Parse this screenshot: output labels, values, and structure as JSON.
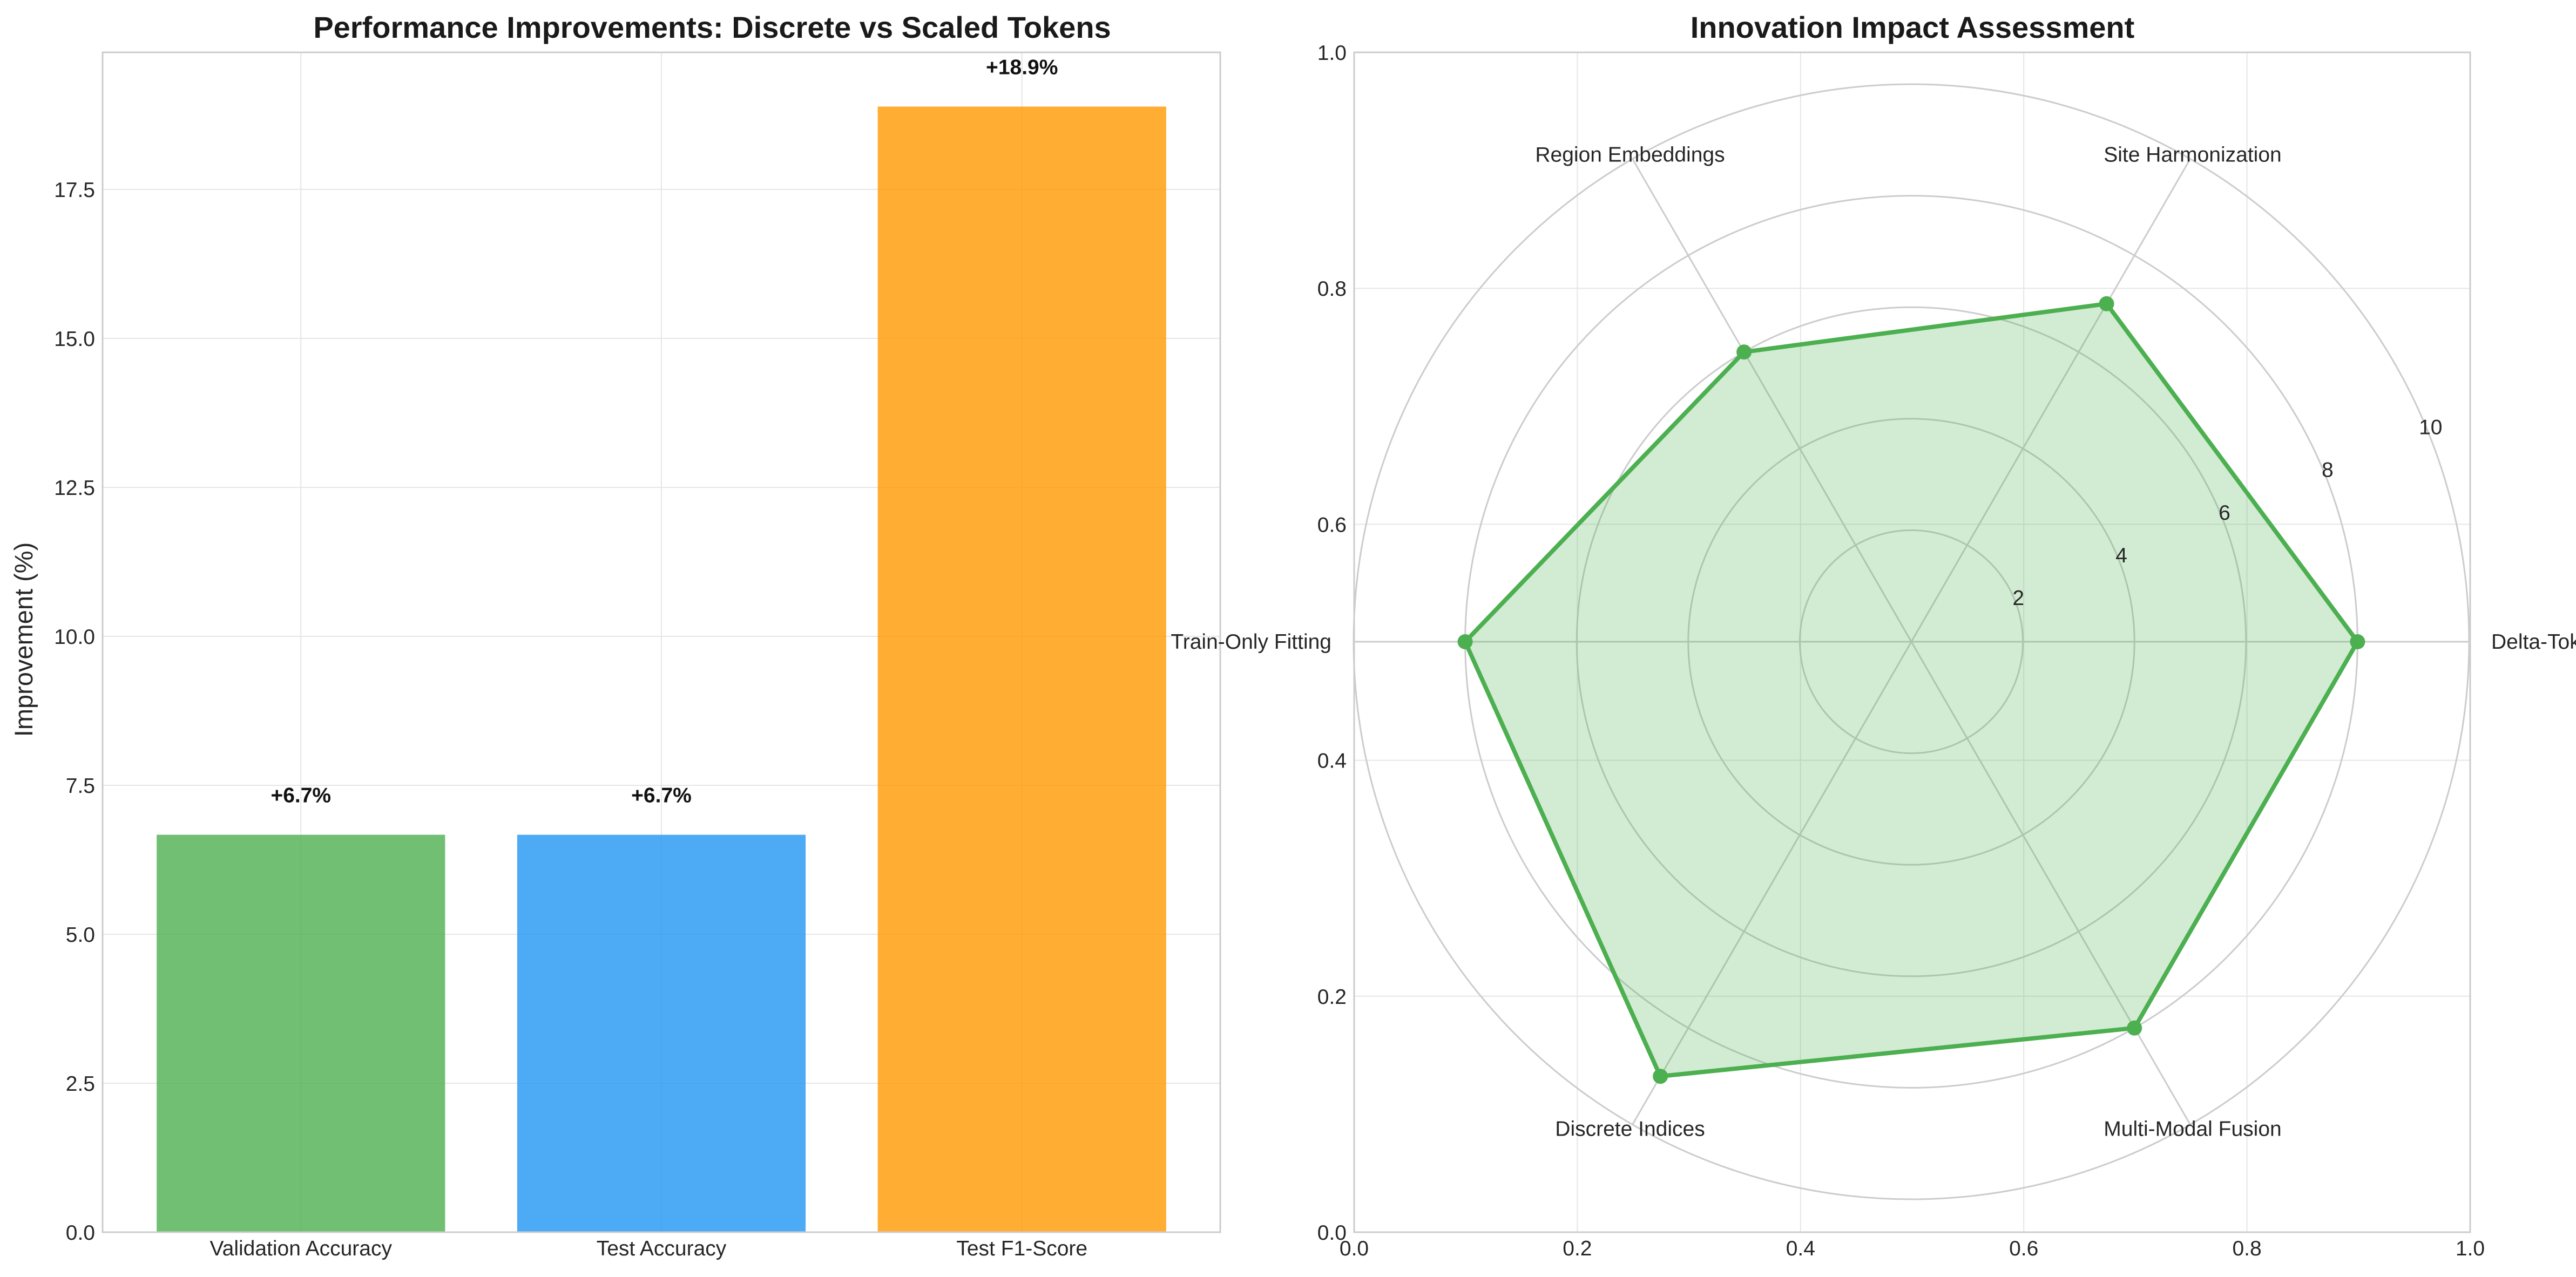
{
  "chart_data": [
    {
      "type": "bar",
      "title": "Performance Improvements: Discrete vs Scaled Tokens",
      "ylabel": "Improvement (%)",
      "xlabel": "",
      "categories": [
        "Validation Accuracy",
        "Test Accuracy",
        "Test F1-Score"
      ],
      "values": [
        6.67,
        6.67,
        18.89
      ],
      "data_labels": [
        "+6.7%",
        "+6.7%",
        "+18.9%"
      ],
      "colors": [
        "#4CAF50",
        "#2196F3",
        "#FF9800"
      ],
      "ylim": [
        0,
        19.8
      ],
      "yticks": [
        0.0,
        2.5,
        5.0,
        7.5,
        10.0,
        12.5,
        15.0,
        17.5
      ],
      "ytick_labels": [
        "0.0",
        "2.5",
        "5.0",
        "7.5",
        "10.0",
        "12.5",
        "15.0",
        "17.5"
      ],
      "grid": true
    },
    {
      "type": "radar",
      "title": "Innovation Impact Assessment",
      "categories": [
        "Delta-Tokens",
        "Site Harmonization",
        "Region Embeddings",
        "Train-Only Fitting",
        "Discrete Indices",
        "Multi-Modal Fusion"
      ],
      "values": [
        8,
        7,
        6,
        8,
        9,
        8
      ],
      "rlim": [
        0,
        10
      ],
      "rticks": [
        2,
        4,
        6,
        8,
        10
      ],
      "rtick_labels": [
        "2",
        "4",
        "6",
        "8",
        "10"
      ],
      "line_color": "#4CAF50",
      "fill_color": "#4CAF50",
      "background_axis_xticks": [
        "0.0",
        "0.2",
        "0.4",
        "0.6",
        "0.8",
        "1.0"
      ],
      "background_axis_yticks": [
        "0.0",
        "0.2",
        "0.4",
        "0.6",
        "0.8",
        "1.0"
      ],
      "grid": true
    }
  ]
}
